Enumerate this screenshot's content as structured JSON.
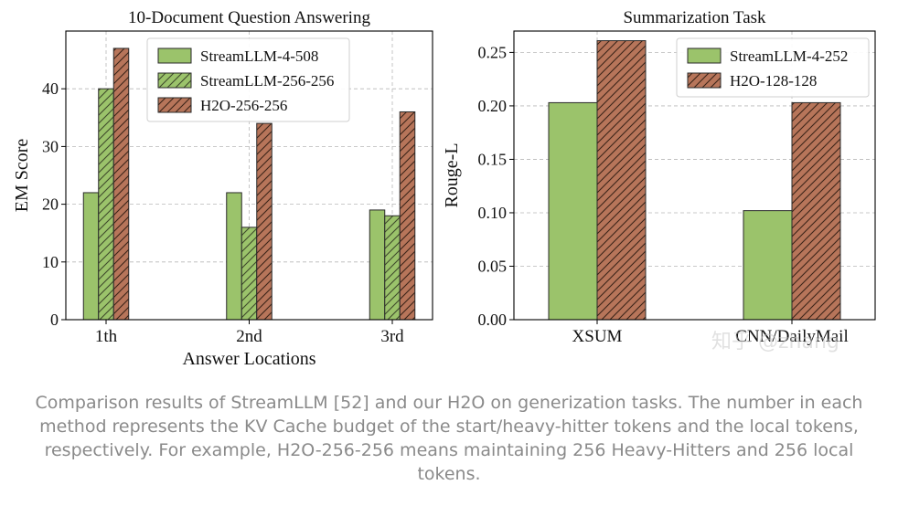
{
  "chart_data": [
    {
      "type": "bar",
      "title": "10-Document Question Answering",
      "xlabel": "Answer Locations",
      "ylabel": "EM Score",
      "categories": [
        "1th",
        "2nd",
        "3rd"
      ],
      "ylim": [
        0,
        50
      ],
      "yticks": [
        "0",
        "10",
        "20",
        "30",
        "40"
      ],
      "legend_position": "top-center",
      "grid": true,
      "series": [
        {
          "name": "StreamLLM-4-508",
          "values": [
            22,
            22,
            19
          ],
          "hatch": "none",
          "color": "#9bc36b"
        },
        {
          "name": "StreamLLM-256-256",
          "values": [
            40,
            16,
            18
          ],
          "hatch": "diagonal",
          "color": "#9bc36b"
        },
        {
          "name": "H2O-256-256",
          "values": [
            47,
            34,
            36
          ],
          "hatch": "diagonal",
          "color": "#b7755a"
        }
      ]
    },
    {
      "type": "bar",
      "title": "Summarization Task",
      "xlabel": "",
      "ylabel": "Rouge-L",
      "categories": [
        "XSUM",
        "CNN/DailyMail"
      ],
      "ylim": [
        0,
        0.27
      ],
      "yticks": [
        "0.00",
        "0.05",
        "0.10",
        "0.15",
        "0.20",
        "0.25"
      ],
      "legend_position": "top-right",
      "grid": true,
      "series": [
        {
          "name": "StreamLLM-4-252",
          "values": [
            0.203,
            0.102
          ],
          "hatch": "none",
          "color": "#9bc36b"
        },
        {
          "name": "H2O-128-128",
          "values": [
            0.261,
            0.203
          ],
          "hatch": "diagonal",
          "color": "#b7755a"
        }
      ]
    }
  ],
  "caption": "Comparison results of StreamLLM [52] and our H2O on generization tasks. The number in each method represents the KV Cache budget of the start/heavy-hitter tokens and the local tokens, respectively. For example, H2O-256-256 means maintaining 256 Heavy-Hitters and 256 local tokens.",
  "watermark": "知乎 @zhang"
}
